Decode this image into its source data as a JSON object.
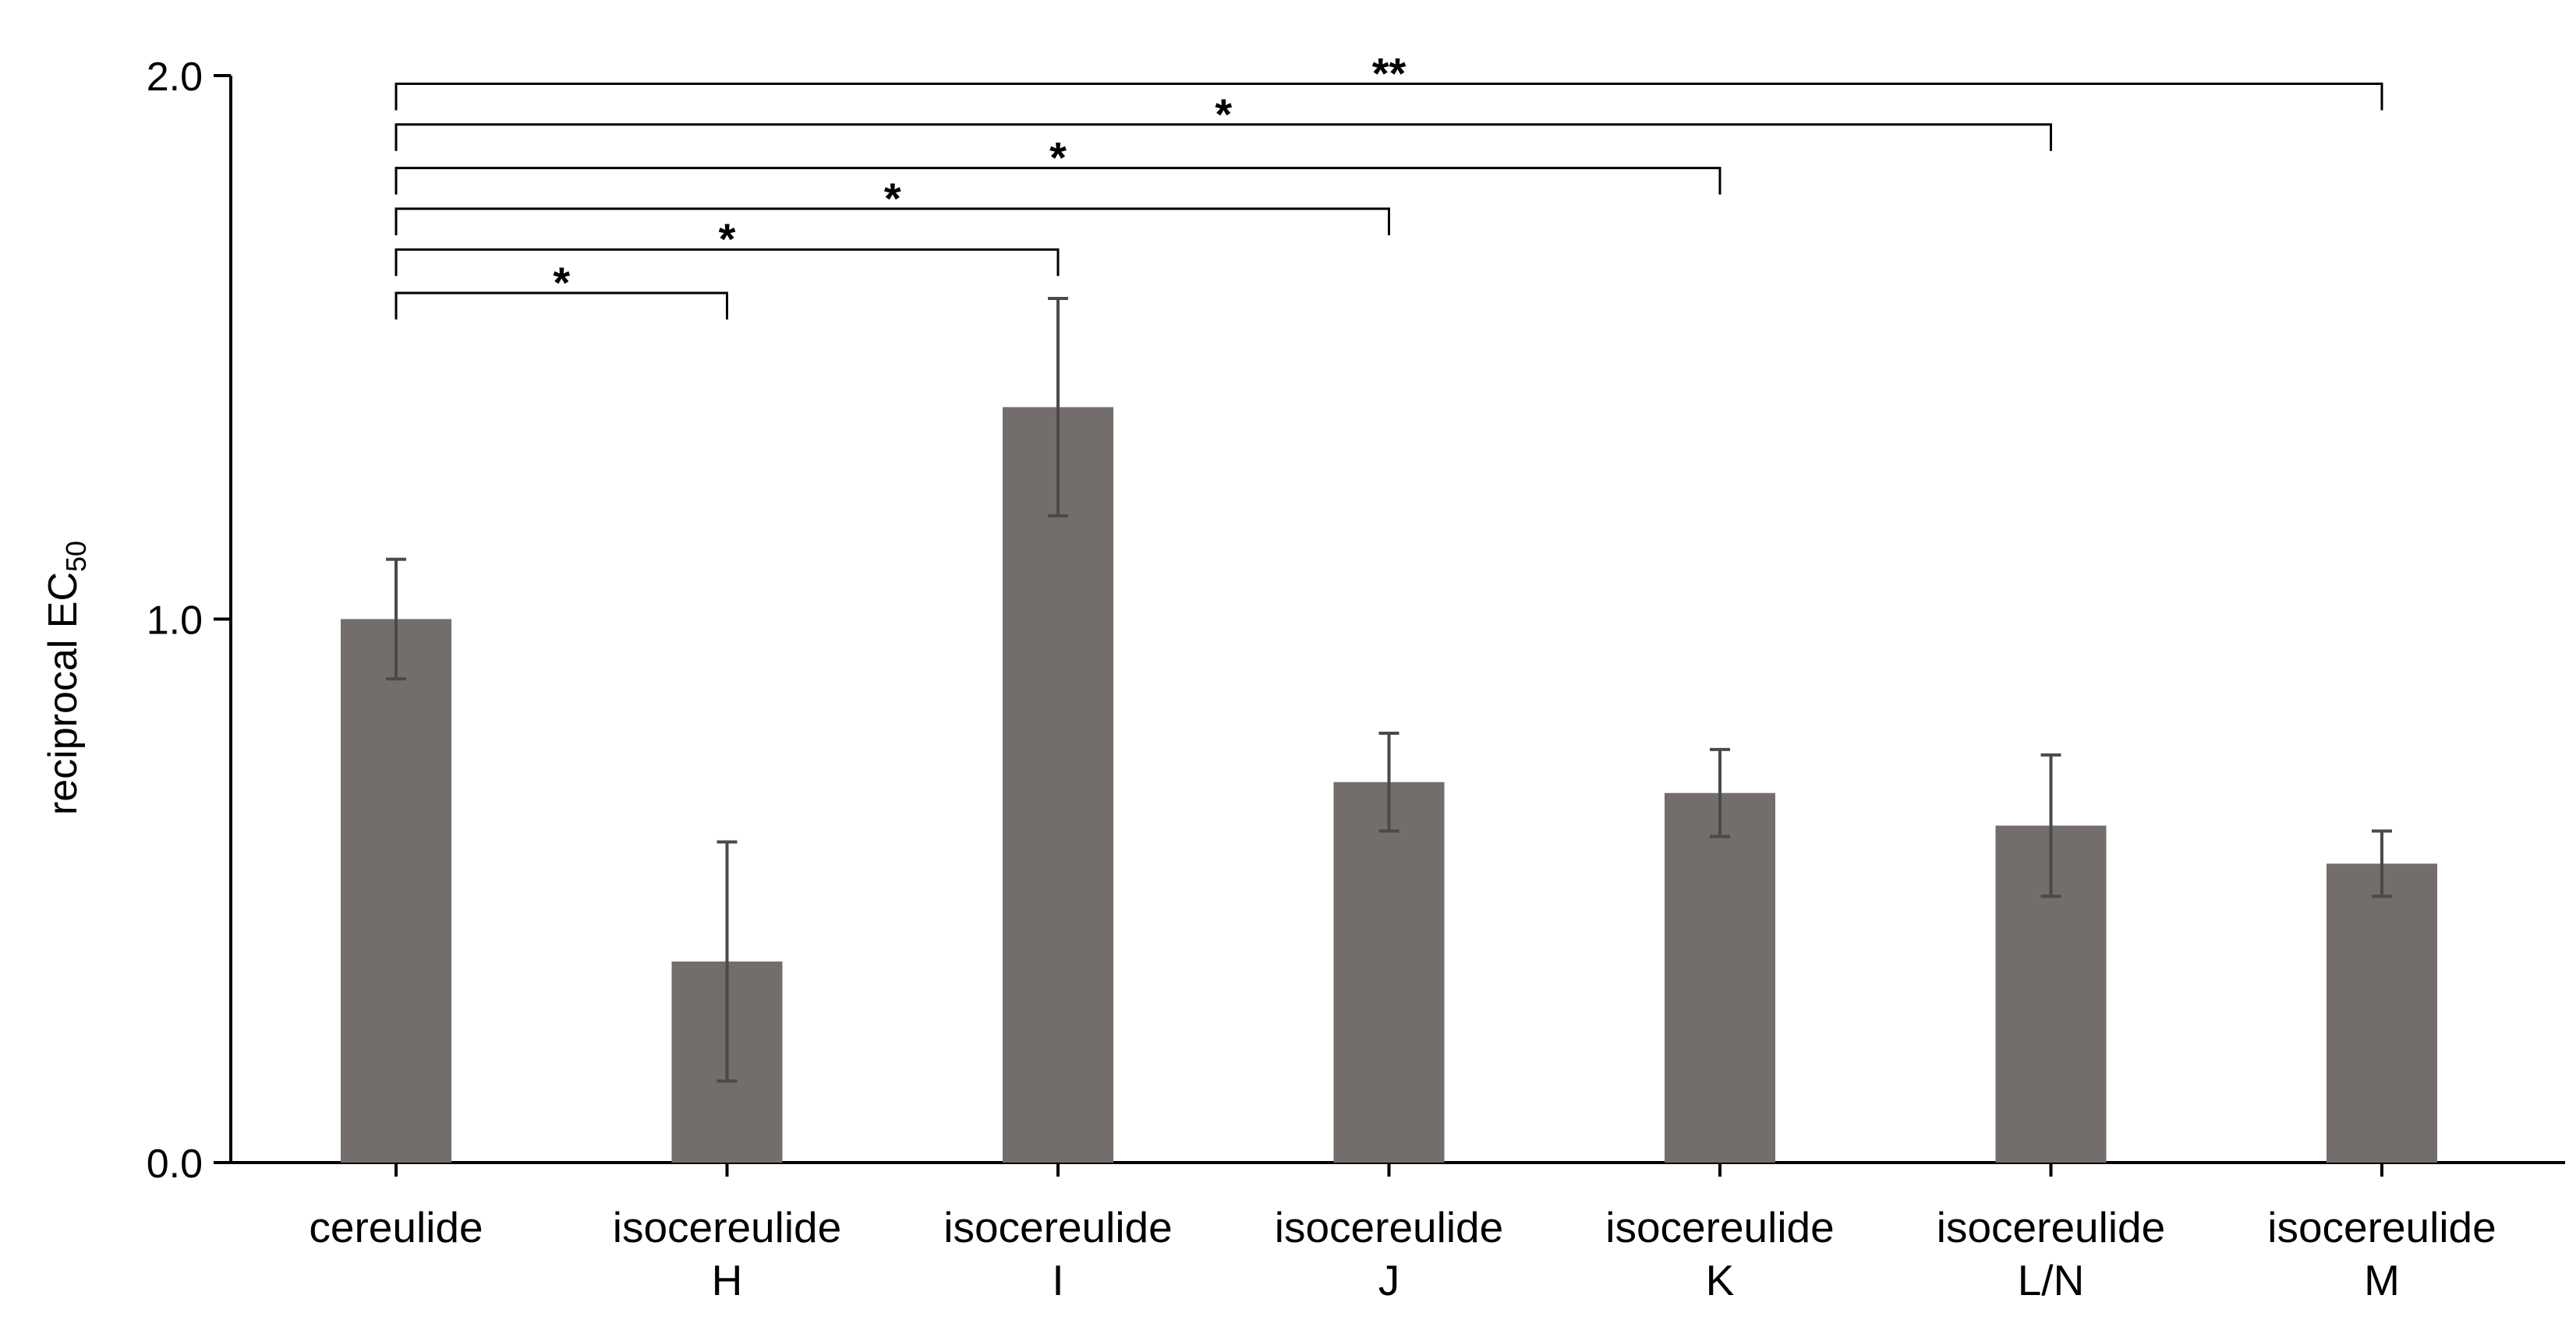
{
  "chart_data": {
    "type": "bar",
    "title": "",
    "xlabel": "",
    "ylabel": "reciprocal EC",
    "ylabel_subscript": "50",
    "ylim": [
      0,
      2.0
    ],
    "yticks": [
      "0.0",
      "1.0",
      "2.0"
    ],
    "ytick_values": [
      0,
      1,
      2
    ],
    "grid": false,
    "bar_color": "#736d6b",
    "errorbar_color": "#4a4a4a",
    "categories": [
      [
        "cereulide"
      ],
      [
        "isocereulide",
        "H"
      ],
      [
        "isocereulide",
        "I"
      ],
      [
        "isocereulide",
        "J"
      ],
      [
        "isocereulide",
        "K"
      ],
      [
        "isocereulide",
        "L/N"
      ],
      [
        "isocereulide",
        "M"
      ]
    ],
    "values": [
      1.0,
      0.37,
      1.39,
      0.7,
      0.68,
      0.62,
      0.55
    ],
    "errors": [
      0.11,
      0.22,
      0.2,
      0.09,
      0.08,
      0.13,
      0.06
    ],
    "significance": [
      {
        "from": 0,
        "to": 1,
        "label": "*",
        "level": 1.6
      },
      {
        "from": 0,
        "to": 2,
        "label": "*",
        "level": 1.68
      },
      {
        "from": 0,
        "to": 3,
        "label": "*",
        "level": 1.755
      },
      {
        "from": 0,
        "to": 4,
        "label": "*",
        "level": 1.83
      },
      {
        "from": 0,
        "to": 5,
        "label": "*",
        "level": 1.91
      },
      {
        "from": 0,
        "to": 6,
        "label": "**",
        "level": 1.985
      }
    ]
  }
}
